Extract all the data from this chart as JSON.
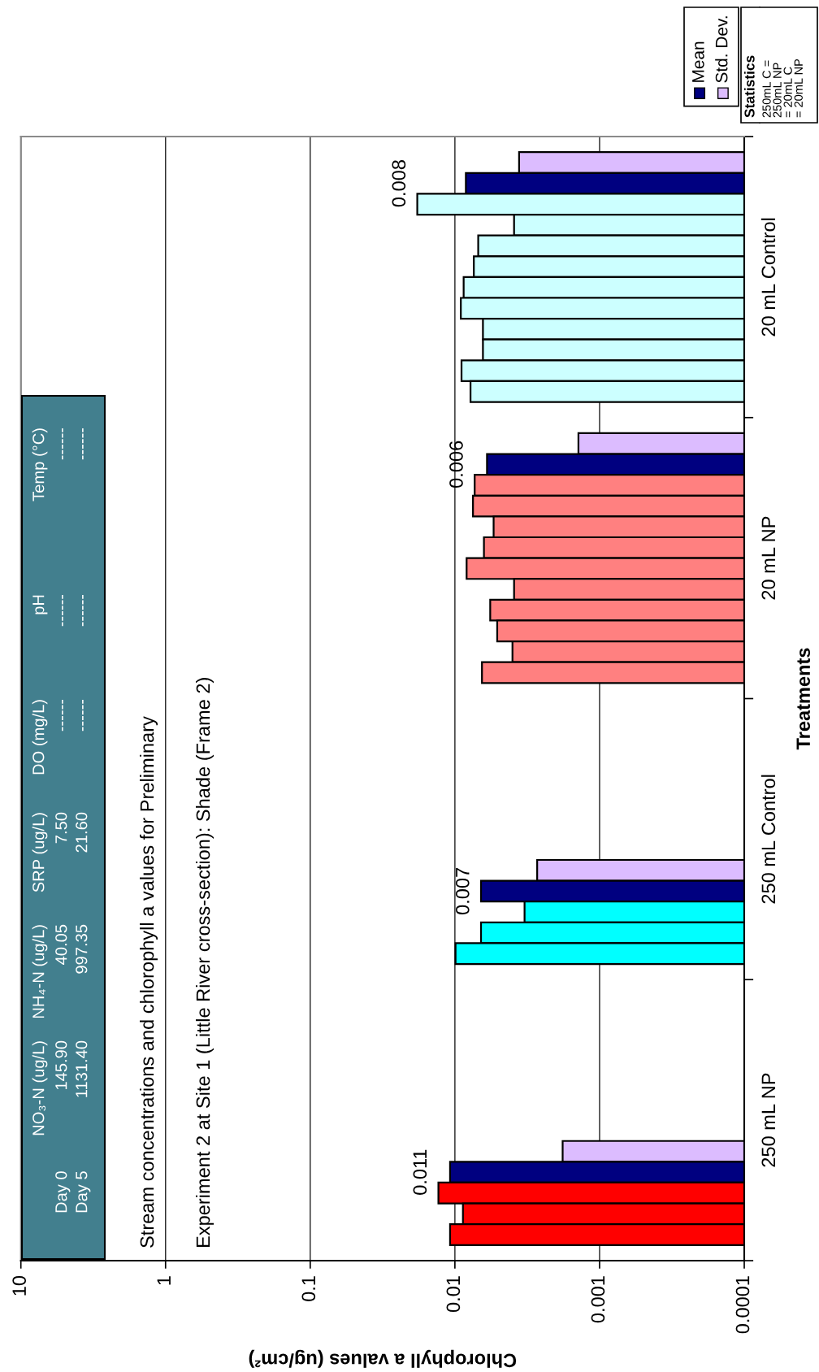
{
  "chart_data": {
    "type": "bar",
    "orientation": "horizontal",
    "title": "Stream concentrations and chlorophyll a values for Preliminary",
    "subtitle": "Experiment 2 at Site 1 (Little River cross-section): Shade (Frame 2)",
    "xlabel": "Chlorophyll a values (ug/cm²)",
    "ylabel": "Treatments",
    "categories": [
      "20 mL Control",
      "20 mL NP",
      "250 mL Control",
      "250 mL NP"
    ],
    "series": [
      {
        "name": "Std. Dev.",
        "color": "#dcbcff",
        "values": [
          0.0036,
          0.0014,
          0.0027,
          0.0018
        ]
      },
      {
        "name": "Mean",
        "color": "#000080",
        "values": [
          0.0084,
          0.006,
          0.0066,
          0.0108
        ],
        "value_labels": [
          "0.008",
          "0.006",
          "0.007",
          "0.011"
        ]
      },
      {
        "colors": [
          "#ccffff",
          "#ff8080",
          "#00ffff",
          "#ff0000"
        ],
        "values": [
          0.0182,
          0.0073,
          null,
          null
        ]
      },
      {
        "colors": [
          "#ccffff",
          "#ff8080",
          "#00ffff",
          "#ff0000"
        ],
        "values": [
          0.0039,
          0.0075,
          null,
          null
        ]
      },
      {
        "colors": [
          "#ccffff",
          "#ff8080",
          "#00ffff",
          "#ff0000"
        ],
        "values": [
          0.0069,
          0.0054,
          null,
          null
        ]
      },
      {
        "colors": [
          "#ccffff",
          "#ff8080",
          "#00ffff",
          "#ff0000"
        ],
        "values": [
          0.0074,
          0.0063,
          null,
          null
        ]
      },
      {
        "colors": [
          "#ccffff",
          "#ff8080",
          "#00ffff",
          "#ff0000"
        ],
        "values": [
          0.0087,
          0.0083,
          null,
          null
        ]
      },
      {
        "colors": [
          "#ccffff",
          "#ff8080",
          "#00ffff",
          "#ff0000"
        ],
        "values": [
          0.0091,
          0.0039,
          null,
          null
        ]
      },
      {
        "colors": [
          "#ccffff",
          "#ff8080",
          "#00ffff",
          "#ff0000"
        ],
        "values": [
          0.0064,
          0.0057,
          null,
          null
        ]
      },
      {
        "colors": [
          "#ccffff",
          "#ff8080",
          "#00ffff",
          "#ff0000"
        ],
        "values": [
          0.0064,
          0.0051,
          0.0033,
          0.013
        ]
      },
      {
        "colors": [
          "#ccffff",
          "#ff8080",
          "#00ffff",
          "#ff0000"
        ],
        "values": [
          0.009,
          0.004,
          0.0066,
          0.0088
        ]
      },
      {
        "colors": [
          "#ccffff",
          "#ff8080",
          "#00ffff",
          "#ff0000"
        ],
        "values": [
          0.0078,
          0.0065,
          0.0099,
          0.0108
        ]
      }
    ],
    "log": "x",
    "xlim": [
      10,
      0.0001
    ],
    "xticks": [
      10,
      1,
      0.1,
      0.01,
      0.001,
      0.0001
    ],
    "grid": "x",
    "legend": "top right",
    "annotations": [
      "\tNO₃-N (ug/L)\tNH₄-N (ug/L)\tSRP (ug/L)\tDO (mg/L)\tpH\tTemp (°C)",
      "Day 0\t145.90\t40.05\t7.50\t------\t------\t------",
      "Day 5\t1131.40\t997.35\t21.60\t------\t------\t------",
      "Statistics",
      "250mL C =\n250mL NP\n= 20mL C\n= 20mL NP"
    ]
  }
}
